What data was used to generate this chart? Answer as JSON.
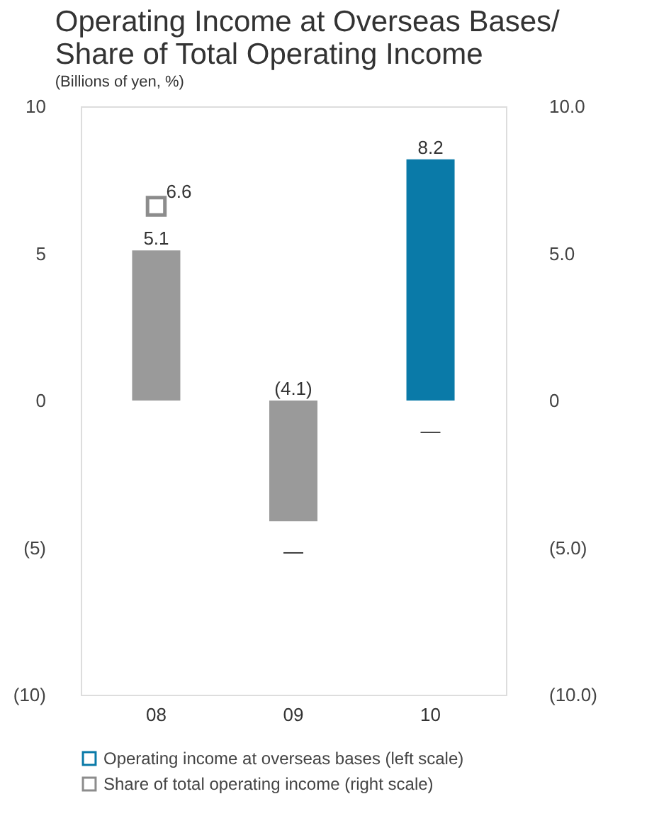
{
  "chart_data": {
    "type": "bar",
    "title": "Operating Income at Overseas Bases/\nShare of Total Operating Income",
    "subtitle": "(Billions of yen, %)",
    "categories": [
      "08",
      "09",
      "10"
    ],
    "series": [
      {
        "name": "Operating income at overseas bases (left scale)",
        "colors": [
          "#9a9a9a",
          "#9a9a9a",
          "#0a7aa8"
        ],
        "values": [
          5.1,
          -4.1,
          8.2
        ],
        "value_labels": [
          "5.1",
          "(4.1)",
          "8.2"
        ]
      },
      {
        "name": "Share of total operating income (right scale)",
        "type": "line",
        "axis": "y2",
        "color": "#8c8c8c",
        "marker": "square",
        "values": [
          6.6,
          null,
          null
        ],
        "value_labels": [
          "6.6",
          null,
          null
        ]
      }
    ],
    "ylim": [
      -10,
      10
    ],
    "yticks": [
      10,
      5,
      0,
      {
        "value": -5,
        "label": "(5)"
      },
      {
        "value": -10,
        "label": "(10)"
      }
    ],
    "y2lim": [
      -10,
      10
    ],
    "y2ticks": [
      {
        "value": 10,
        "label": "10.0"
      },
      {
        "value": 5,
        "label": "5.0"
      },
      0,
      {
        "value": -5,
        "label": "(5.0)"
      },
      {
        "value": -10,
        "label": "(10.0)"
      }
    ],
    "annotations": [
      "—",
      "—"
    ],
    "grid": false,
    "legend": "bottom"
  }
}
